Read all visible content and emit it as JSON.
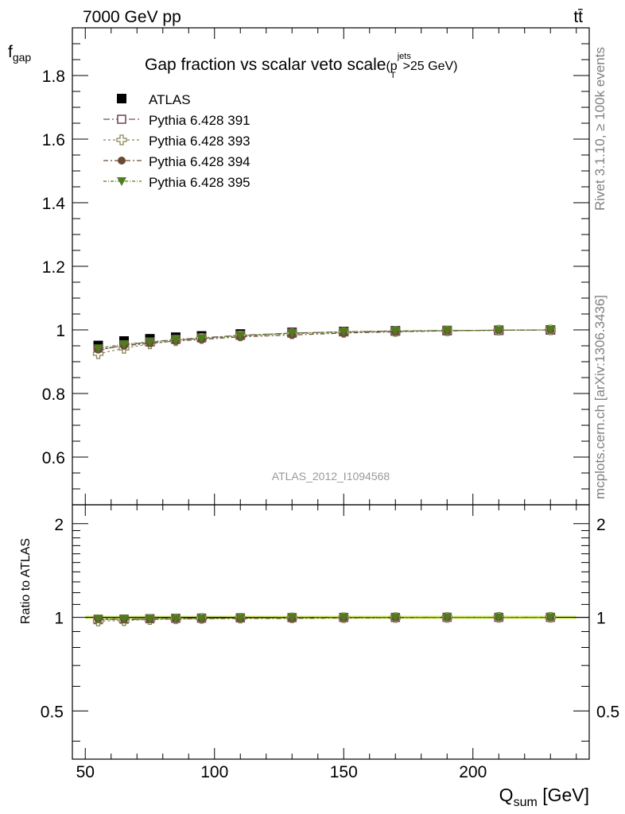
{
  "header": {
    "left": "7000 GeV pp",
    "right": "tt̄"
  },
  "side": {
    "rivet": "Rivet 3.1.10, ≥ 100k events",
    "mcplots": "mcplots.cern.ch [arXiv:1306.3436]"
  },
  "chart_data": {
    "type": "scatter",
    "title": "Gap fraction vs scalar veto scale",
    "title_suffix": {
      "open": "(p",
      "sup": "jets",
      "sub": "T",
      "close": ">25 GeV)"
    },
    "ylabel_main": "f",
    "ylabel_main_sub": "gap",
    "ylabel_ratio": "Ratio to ATLAS",
    "xlabel": "Q",
    "xlabel_sub": "sum",
    "xlabel_unit": "[GeV]",
    "analysis_id": "ATLAS_2012_I1094568",
    "xlim": [
      45,
      245
    ],
    "ylim_main": [
      0.45,
      1.95
    ],
    "ylim_ratio": [
      0.35,
      2.3
    ],
    "ratio_scale": "log",
    "x_ticks": [
      50,
      100,
      150,
      200
    ],
    "y_ticks_main": [
      0.6,
      0.8,
      1,
      1.2,
      1.4,
      1.6,
      1.8
    ],
    "y_ticks_ratio": [
      0.5,
      1,
      2
    ],
    "y_tick_labels_main": [
      "0.6",
      "0.8",
      "1",
      "1.2",
      "1.4",
      "1.6",
      "1.8"
    ],
    "y_tick_labels_ratio": [
      "0.5",
      "1",
      "2"
    ],
    "x_tick_labels": [
      "50",
      "100",
      "150",
      "200"
    ],
    "legend_position": "top-left",
    "x": [
      55,
      65,
      75,
      85,
      95,
      110,
      130,
      150,
      170,
      190,
      210,
      230
    ],
    "data": {
      "name": "ATLAS",
      "values": [
        0.951,
        0.965,
        0.972,
        0.977,
        0.981,
        0.987,
        0.992,
        0.995,
        0.997,
        0.998,
        0.999,
        1.0
      ],
      "errors": [
        0.012,
        0.01,
        0.009,
        0.008,
        0.007,
        0.006,
        0.005,
        0.004,
        0.003,
        0.003,
        0.002,
        0.001
      ]
    },
    "series": [
      {
        "name": "Pythia 6.428 391",
        "marker": "open-square",
        "color": "#7a4a5e",
        "values": [
          0.935,
          0.952,
          0.962,
          0.97,
          0.975,
          0.983,
          0.99,
          0.994,
          0.996,
          0.998,
          0.999,
          1.0
        ]
      },
      {
        "name": "Pythia 6.428 393",
        "marker": "open-cross",
        "color": "#8a8458",
        "values": [
          0.925,
          0.942,
          0.956,
          0.966,
          0.973,
          0.981,
          0.988,
          0.992,
          0.995,
          0.997,
          0.999,
          1.0
        ]
      },
      {
        "name": "Pythia 6.428 394",
        "marker": "filled-circle",
        "color": "#6b4a33",
        "values": [
          0.938,
          0.95,
          0.958,
          0.965,
          0.97,
          0.978,
          0.984,
          0.99,
          0.994,
          0.997,
          0.999,
          1.0
        ]
      },
      {
        "name": "Pythia 6.428 395",
        "marker": "filled-triangle-down",
        "color": "#4f7d1c",
        "values": [
          0.942,
          0.955,
          0.962,
          0.968,
          0.973,
          0.982,
          0.99,
          0.994,
          0.997,
          0.998,
          0.999,
          1.0
        ]
      }
    ],
    "colors": {
      "data": "#000000",
      "band": "#d4f25a",
      "side_text": "#808080",
      "analysis_text": "#999999"
    }
  }
}
